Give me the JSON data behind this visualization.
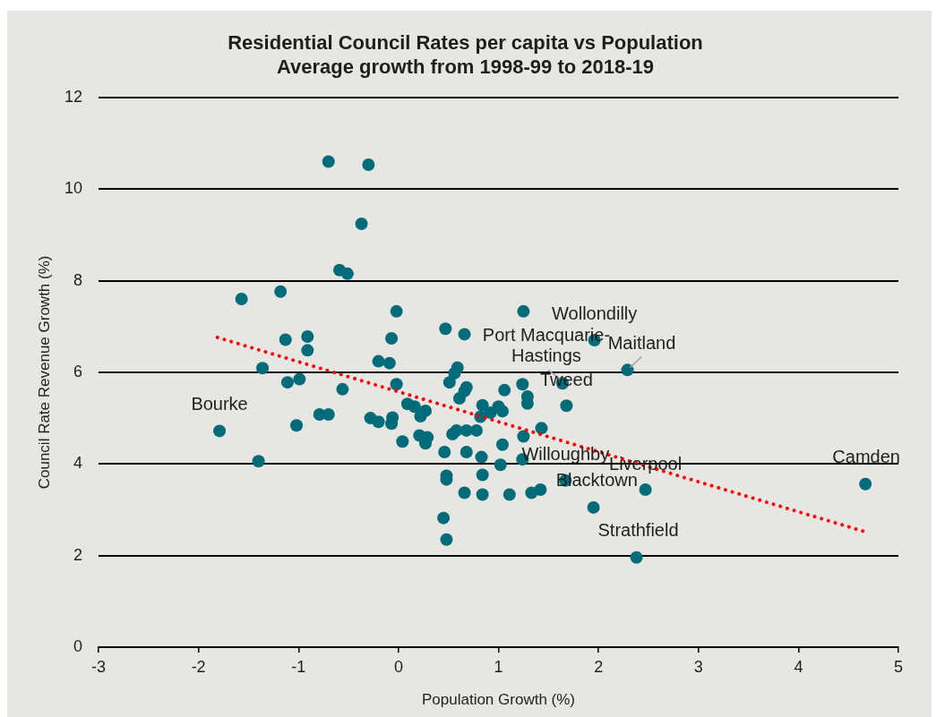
{
  "chart_data": {
    "type": "scatter",
    "title": "Residential Council Rates per capita vs Population",
    "subtitle": "Average growth from 1998-99 to 2018-19",
    "xlabel": "Population Growth (%)",
    "ylabel": "Council Rate Revenue Growth (%)",
    "xlim": [
      -3,
      5
    ],
    "xticks": [
      -3,
      -2,
      -1,
      0,
      1,
      2,
      3,
      4,
      5
    ],
    "ylim": [
      0,
      12
    ],
    "yticks": [
      0,
      2,
      4,
      6,
      8,
      10,
      12
    ],
    "grid": "y",
    "legend": false,
    "series": [
      {
        "color": "#006b79",
        "marker": "circle",
        "x": [
          -0.7,
          -0.3,
          -0.37,
          -0.59,
          -0.51,
          -1.57,
          -1.18,
          -0.02,
          0.47,
          -1.13,
          -0.91,
          -0.91,
          -0.07,
          -1.36,
          -0.2,
          -0.09,
          -1.11,
          -0.99,
          -0.56,
          -0.02,
          0.51,
          -1.79,
          -1.4,
          -1.02,
          -0.79,
          -0.7,
          -0.28,
          -0.2,
          -0.06,
          -0.07,
          0.04,
          0.09,
          0.16,
          0.27,
          0.22,
          0.21,
          0.29,
          0.27,
          0.46,
          0.48,
          0.48,
          0.45,
          0.48,
          1.25,
          0.66,
          1.96,
          2.29,
          0.59,
          0.56,
          1.24,
          1.64,
          0.68,
          0.66,
          0.61,
          1.06,
          1.29,
          1.29,
          1.68,
          0.84,
          1.0,
          1.04,
          0.92,
          0.82,
          1.43,
          1.25,
          0.54,
          0.58,
          0.68,
          0.78,
          1.04,
          0.68,
          0.83,
          1.02,
          1.24,
          0.84,
          0.66,
          0.84,
          1.11,
          1.33,
          1.42,
          1.67,
          2.47,
          1.95,
          2.38,
          4.67
        ],
        "values": [
          10.6,
          10.53,
          9.24,
          8.23,
          8.15,
          7.6,
          7.76,
          7.33,
          6.95,
          6.71,
          6.78,
          6.48,
          6.74,
          6.09,
          6.24,
          6.2,
          5.78,
          5.85,
          5.63,
          5.74,
          5.78,
          4.72,
          4.06,
          4.84,
          5.08,
          5.08,
          5.0,
          4.92,
          5.01,
          4.88,
          4.49,
          5.31,
          5.25,
          5.16,
          5.04,
          4.62,
          4.58,
          4.45,
          4.26,
          3.74,
          3.66,
          2.82,
          2.35,
          7.33,
          6.83,
          6.7,
          6.05,
          6.1,
          5.98,
          5.74,
          5.76,
          5.67,
          5.59,
          5.43,
          5.61,
          5.47,
          5.32,
          5.27,
          5.28,
          5.25,
          5.15,
          5.12,
          5.03,
          4.78,
          4.6,
          4.65,
          4.73,
          4.73,
          4.73,
          4.42,
          4.26,
          4.15,
          3.98,
          4.1,
          3.76,
          3.37,
          3.33,
          3.33,
          3.37,
          3.44,
          3.64,
          3.44,
          3.05,
          1.96,
          3.56
        ]
      },
      {
        "type": "line",
        "color": "#ff0000",
        "line_style": "dotted",
        "marker": "none",
        "x": [
          -1.81,
          4.65
        ],
        "values": [
          6.76,
          2.53
        ]
      }
    ],
    "annotations": [
      {
        "text": "Bourke",
        "x": -1.79,
        "y": 4.72
      },
      {
        "text": "Wollondilly",
        "x": 1.96,
        "y": 6.7
      },
      {
        "text": "Port Macquarie-Hastings",
        "x": 1.64,
        "y": 5.76
      },
      {
        "text": "Maitland",
        "x": 2.29,
        "y": 6.05
      },
      {
        "text": "Tweed",
        "x": 1.68,
        "y": 5.27
      },
      {
        "text": "Willoughby",
        "x": 1.24,
        "y": 4.1
      },
      {
        "text": "Blacktown",
        "x": 1.67,
        "y": 3.64
      },
      {
        "text": "Liverpool",
        "x": 2.47,
        "y": 3.44
      },
      {
        "text": "Camden",
        "x": 4.67,
        "y": 3.56
      },
      {
        "text": "Strathfield",
        "x": 2.38,
        "y": 1.96
      }
    ]
  }
}
